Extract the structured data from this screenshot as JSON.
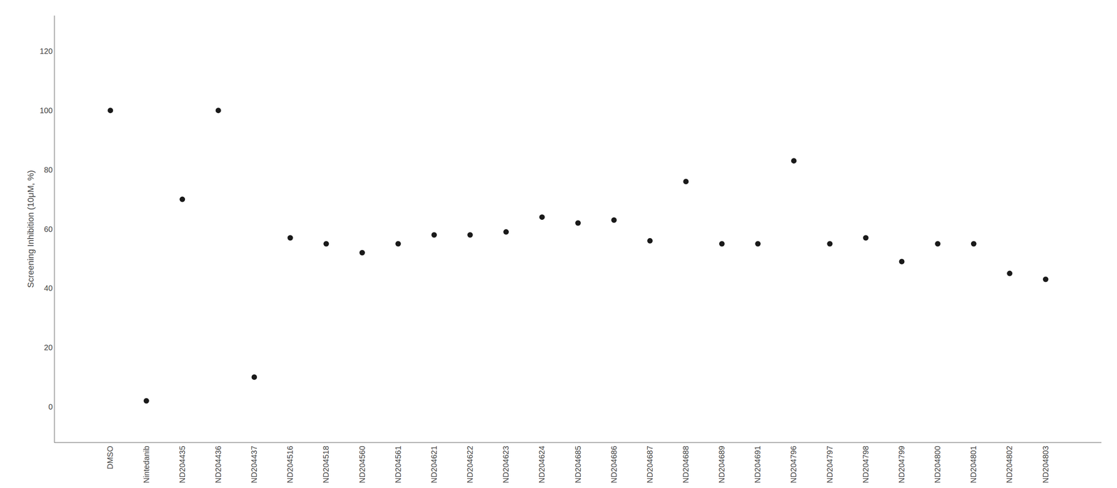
{
  "chart_data": {
    "type": "scatter",
    "categories": [
      "DMSO",
      "Nintedanib",
      "ND204435",
      "ND204436",
      "ND204437",
      "ND204516",
      "ND204518",
      "ND204560",
      "ND204561",
      "ND204621",
      "ND204622",
      "ND204623",
      "ND204624",
      "ND204685",
      "ND204686",
      "ND204687",
      "ND204688",
      "ND204689",
      "ND204691",
      "ND204796",
      "ND204797",
      "ND204798",
      "ND204799",
      "ND204800",
      "ND204801",
      "ND204802",
      "ND204803"
    ],
    "values": [
      100,
      2,
      70,
      100,
      10,
      57,
      55,
      52,
      55,
      58,
      58,
      59,
      64,
      62,
      63,
      56,
      76,
      55,
      55,
      83,
      55,
      57,
      49,
      55,
      55,
      45,
      43
    ],
    "color": "#1a1a1a",
    "ylabel": "Screening Inhibition (10μM, %)",
    "ylim": [
      -12,
      132
    ],
    "yticks": [
      0,
      20,
      40,
      60,
      80,
      100,
      120
    ],
    "grid": false
  }
}
